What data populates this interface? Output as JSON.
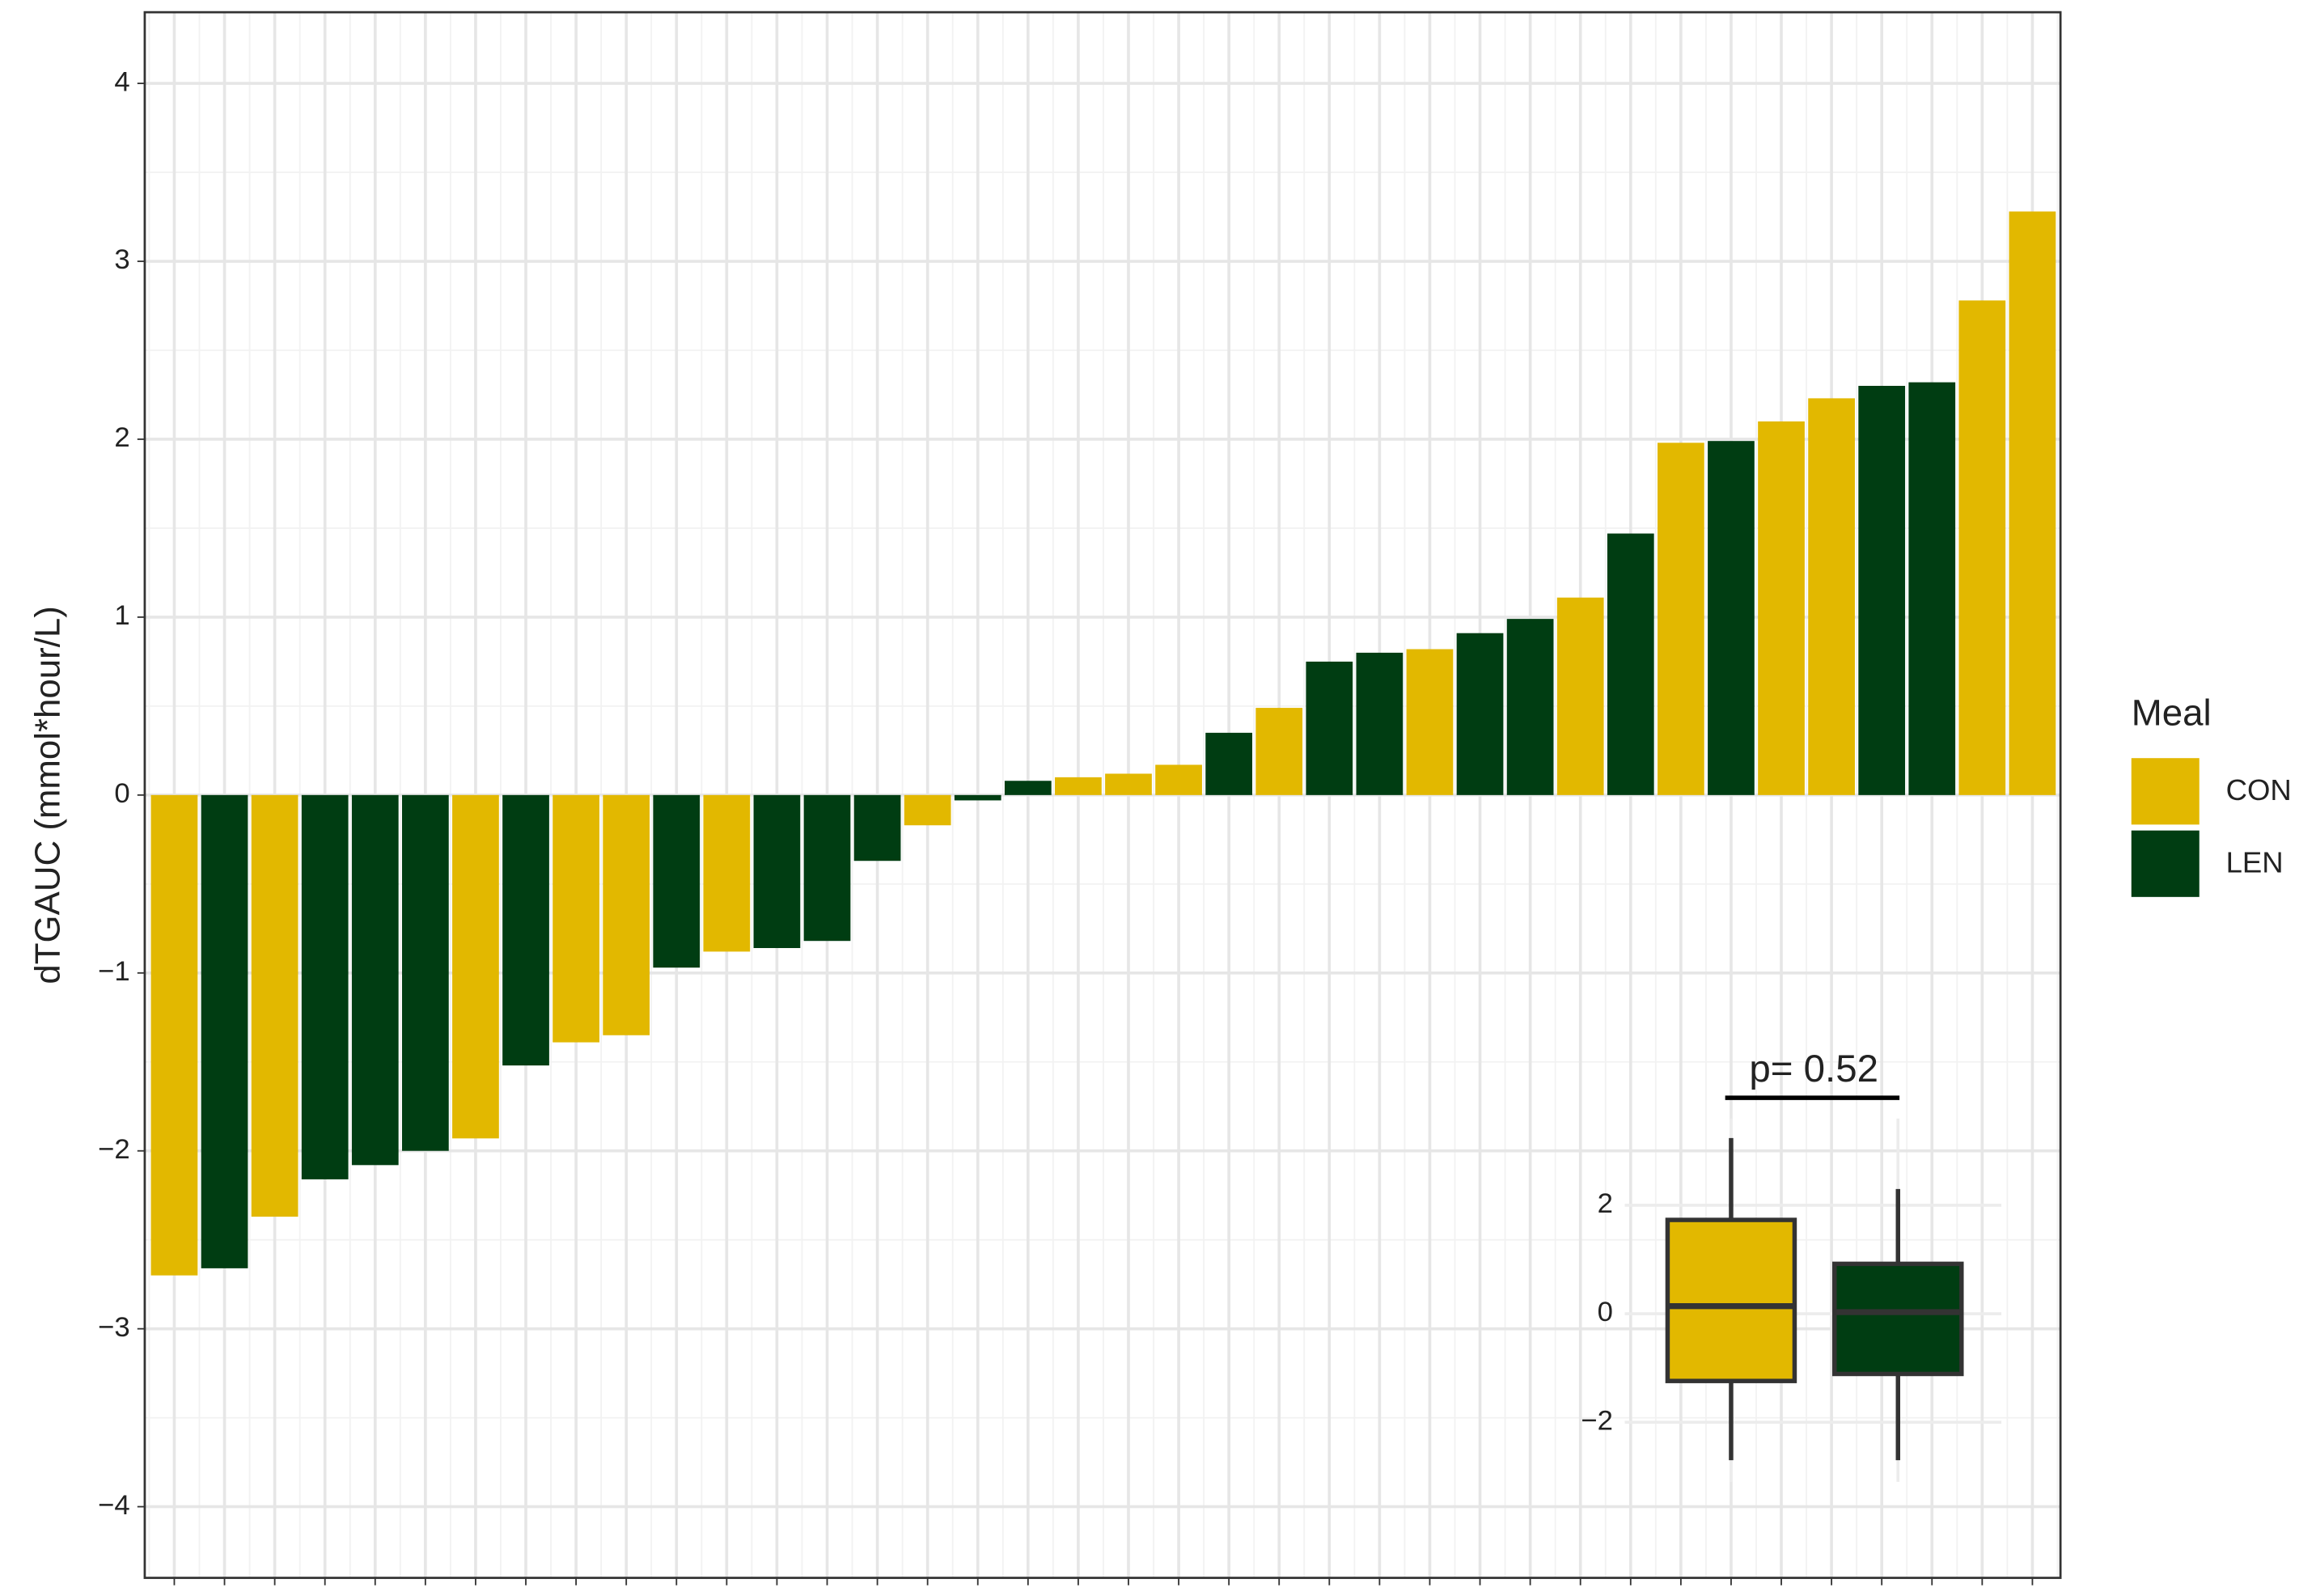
{
  "chart_data": [
    {
      "type": "bar",
      "y_label": "dTGAUC (mmol*hour/L)",
      "legend_title": "Meal",
      "grid": true,
      "categories": [
        null,
        null,
        null,
        null,
        null,
        null,
        null,
        null,
        null,
        null,
        null,
        null,
        null,
        null,
        null,
        null,
        null,
        null,
        null,
        null,
        null,
        null,
        null,
        null,
        null,
        null,
        null,
        null,
        null,
        null,
        null,
        null,
        null,
        null,
        null,
        null,
        null,
        null
      ],
      "series": [
        {
          "name": "CON",
          "color": "#e2b800",
          "values": [
            -2.7,
            null,
            -2.37,
            null,
            null,
            null,
            -1.93,
            null,
            -1.39,
            -1.35,
            null,
            -0.88,
            null,
            null,
            null,
            -0.17,
            null,
            null,
            0.1,
            0.12,
            0.17,
            null,
            0.49,
            null,
            null,
            0.82,
            null,
            null,
            1.11,
            null,
            1.98,
            null,
            2.1,
            2.23,
            null,
            null,
            2.78,
            3.28
          ]
        },
        {
          "name": "LEN",
          "color": "#003d12",
          "values": [
            null,
            -2.66,
            null,
            -2.16,
            -2.08,
            -2.0,
            null,
            -1.52,
            null,
            null,
            -0.97,
            null,
            -0.86,
            -0.82,
            -0.37,
            null,
            -0.03,
            0.08,
            null,
            null,
            null,
            0.35,
            null,
            0.75,
            0.8,
            null,
            0.91,
            0.99,
            null,
            1.47,
            null,
            1.99,
            null,
            null,
            2.3,
            2.32,
            null,
            null
          ]
        }
      ],
      "ylim": [
        -4.4,
        4.4
      ],
      "yticks": [
        {
          "value": -4,
          "label": "−4"
        },
        {
          "value": -3,
          "label": "−3"
        },
        {
          "value": -2,
          "label": "−2"
        },
        {
          "value": -1,
          "label": "−1"
        },
        0,
        1,
        2,
        3,
        4
      ]
    },
    {
      "type": "box",
      "annotation": "p= 0.52",
      "ylim": [
        -3.1,
        3.6
      ],
      "yticks": [
        {
          "value": -2,
          "label": "−2"
        },
        0,
        2
      ],
      "boxes": [
        {
          "color": "#e2b800",
          "min": -2.7,
          "q1": -1.24,
          "median": 0.14,
          "q3": 1.73,
          "max": 3.24
        },
        {
          "color": "#003d12",
          "min": -2.7,
          "q1": -1.11,
          "median": 0.03,
          "q3": 0.92,
          "max": 2.3
        }
      ]
    }
  ]
}
